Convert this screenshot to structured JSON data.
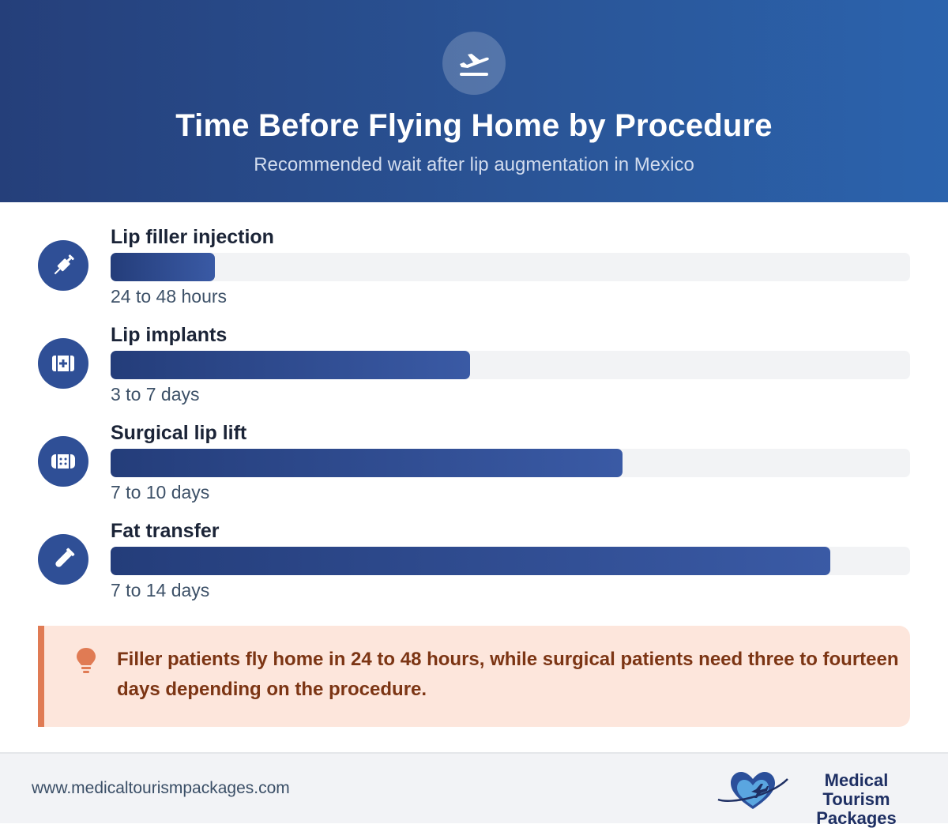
{
  "header": {
    "icon": "airplane-departure-icon",
    "title": "Time Before Flying Home by Procedure",
    "subtitle": "Recommended wait after lip augmentation in Mexico"
  },
  "chart_data": {
    "type": "bar",
    "orientation": "horizontal",
    "categories": [
      "Lip filler injection",
      "Lip implants",
      "Surgical lip lift",
      "Fat transfer"
    ],
    "value_labels": [
      "24 to 48 hours",
      "3 to 7 days",
      "7 to 10 days",
      "7 to 14 days"
    ],
    "values": [
      0.13,
      0.45,
      0.64,
      0.9
    ],
    "icons": [
      "syringe-icon",
      "first-aid-kit-icon",
      "bandage-icon",
      "test-tube-icon"
    ],
    "colors": {
      "bar_start": "#243d7a",
      "bar_end": "#3a5aa5",
      "track": "#f2f3f5",
      "icon_bg": "#2f4f96"
    }
  },
  "callout": {
    "icon": "lightbulb-icon",
    "text": "Filler patients fly home in 24 to 48 hours, while surgical patients need three to fourteen days depending on the procedure.",
    "colors": {
      "background": "#fde6dc",
      "accent": "#e07b54",
      "text": "#7c3514"
    }
  },
  "footer": {
    "url": "www.medicaltourismpackages.com",
    "logo_line1": "Medical Tourism",
    "logo_line2": "Packages",
    "logo_icon": "heart-airplane-logo-icon"
  }
}
